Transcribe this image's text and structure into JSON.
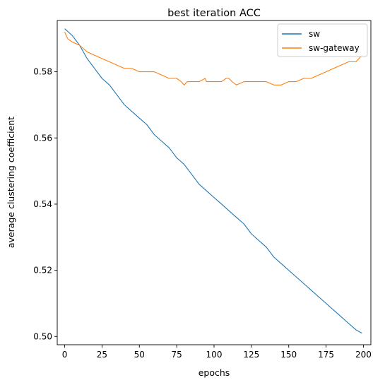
{
  "chart_data": {
    "type": "line",
    "title": "best iteration ACC",
    "xlabel": "epochs",
    "ylabel": "average clustering coefficient",
    "xlim": [
      -5,
      205
    ],
    "ylim": [
      0.4975,
      0.5955
    ],
    "xticks": [
      0,
      25,
      50,
      75,
      100,
      125,
      150,
      175,
      200
    ],
    "xtick_labels": [
      "0",
      "25",
      "50",
      "75",
      "100",
      "125",
      "150",
      "175",
      "200"
    ],
    "yticks": [
      0.5,
      0.52,
      0.54,
      0.56,
      0.58
    ],
    "ytick_labels": [
      "0.50",
      "0.52",
      "0.54",
      "0.56",
      "0.58"
    ],
    "grid": false,
    "legend_position": "top-right",
    "series": [
      {
        "name": "sw",
        "color": "#1f77b4",
        "x": [
          0,
          5,
          10,
          15,
          20,
          25,
          30,
          35,
          40,
          45,
          50,
          55,
          60,
          65,
          70,
          75,
          80,
          85,
          90,
          95,
          100,
          105,
          110,
          115,
          120,
          125,
          130,
          135,
          140,
          145,
          150,
          155,
          160,
          165,
          170,
          175,
          180,
          185,
          190,
          195,
          199
        ],
        "y": [
          0.593,
          0.591,
          0.588,
          0.584,
          0.581,
          0.578,
          0.576,
          0.573,
          0.57,
          0.568,
          0.566,
          0.564,
          0.561,
          0.559,
          0.557,
          0.554,
          0.552,
          0.549,
          0.546,
          0.544,
          0.542,
          0.54,
          0.538,
          0.536,
          0.534,
          0.531,
          0.529,
          0.527,
          0.524,
          0.522,
          0.52,
          0.518,
          0.516,
          0.514,
          0.512,
          0.51,
          0.508,
          0.506,
          0.504,
          0.502,
          0.501
        ]
      },
      {
        "name": "sw-gateway",
        "color": "#ff7f0e",
        "x": [
          0,
          2,
          5,
          10,
          15,
          20,
          25,
          30,
          35,
          40,
          45,
          50,
          55,
          60,
          65,
          70,
          75,
          78,
          80,
          82,
          85,
          90,
          94,
          95,
          100,
          105,
          108,
          110,
          112,
          115,
          120,
          125,
          130,
          135,
          140,
          145,
          150,
          155,
          160,
          165,
          170,
          175,
          180,
          185,
          190,
          195,
          199
        ],
        "y": [
          0.592,
          0.59,
          0.589,
          0.588,
          0.586,
          0.585,
          0.584,
          0.583,
          0.582,
          0.581,
          0.581,
          0.58,
          0.58,
          0.58,
          0.579,
          0.578,
          0.578,
          0.577,
          0.576,
          0.577,
          0.577,
          0.577,
          0.578,
          0.577,
          0.577,
          0.577,
          0.578,
          0.578,
          0.577,
          0.576,
          0.577,
          0.577,
          0.577,
          0.577,
          0.576,
          0.576,
          0.577,
          0.577,
          0.578,
          0.578,
          0.579,
          0.58,
          0.581,
          0.582,
          0.583,
          0.583,
          0.585
        ]
      }
    ]
  }
}
